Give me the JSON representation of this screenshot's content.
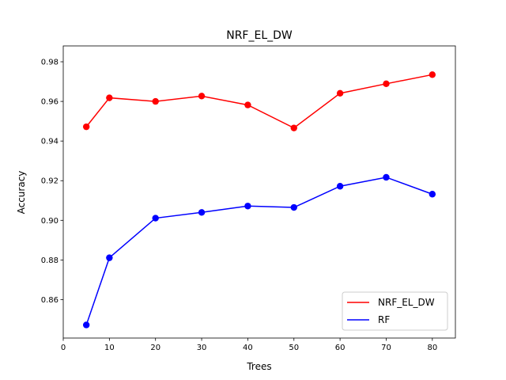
{
  "chart_data": {
    "type": "line",
    "title": "NRF_EL_DW",
    "xlabel": "Trees",
    "ylabel": "Accuracy",
    "xlim": [
      0,
      85
    ],
    "ylim": [
      0.8406,
      0.988
    ],
    "xticks": [
      0,
      10,
      20,
      30,
      40,
      50,
      60,
      70,
      80
    ],
    "yticks": [
      0.86,
      0.88,
      0.9,
      0.92,
      0.94,
      0.96,
      0.98
    ],
    "x": [
      5,
      10,
      20,
      30,
      40,
      50,
      60,
      70,
      80
    ],
    "series": [
      {
        "name": "NRF_EL_DW",
        "color": "#ff0000",
        "values": [
          0.9472,
          0.9618,
          0.96,
          0.9627,
          0.9582,
          0.9466,
          0.9641,
          0.9689,
          0.9735
        ]
      },
      {
        "name": "RF",
        "color": "#0000ff",
        "values": [
          0.8472,
          0.8811,
          0.9011,
          0.904,
          0.9072,
          0.9065,
          0.9172,
          0.9217,
          0.9132
        ]
      }
    ],
    "grid": false,
    "legend_position": "lower-right"
  }
}
